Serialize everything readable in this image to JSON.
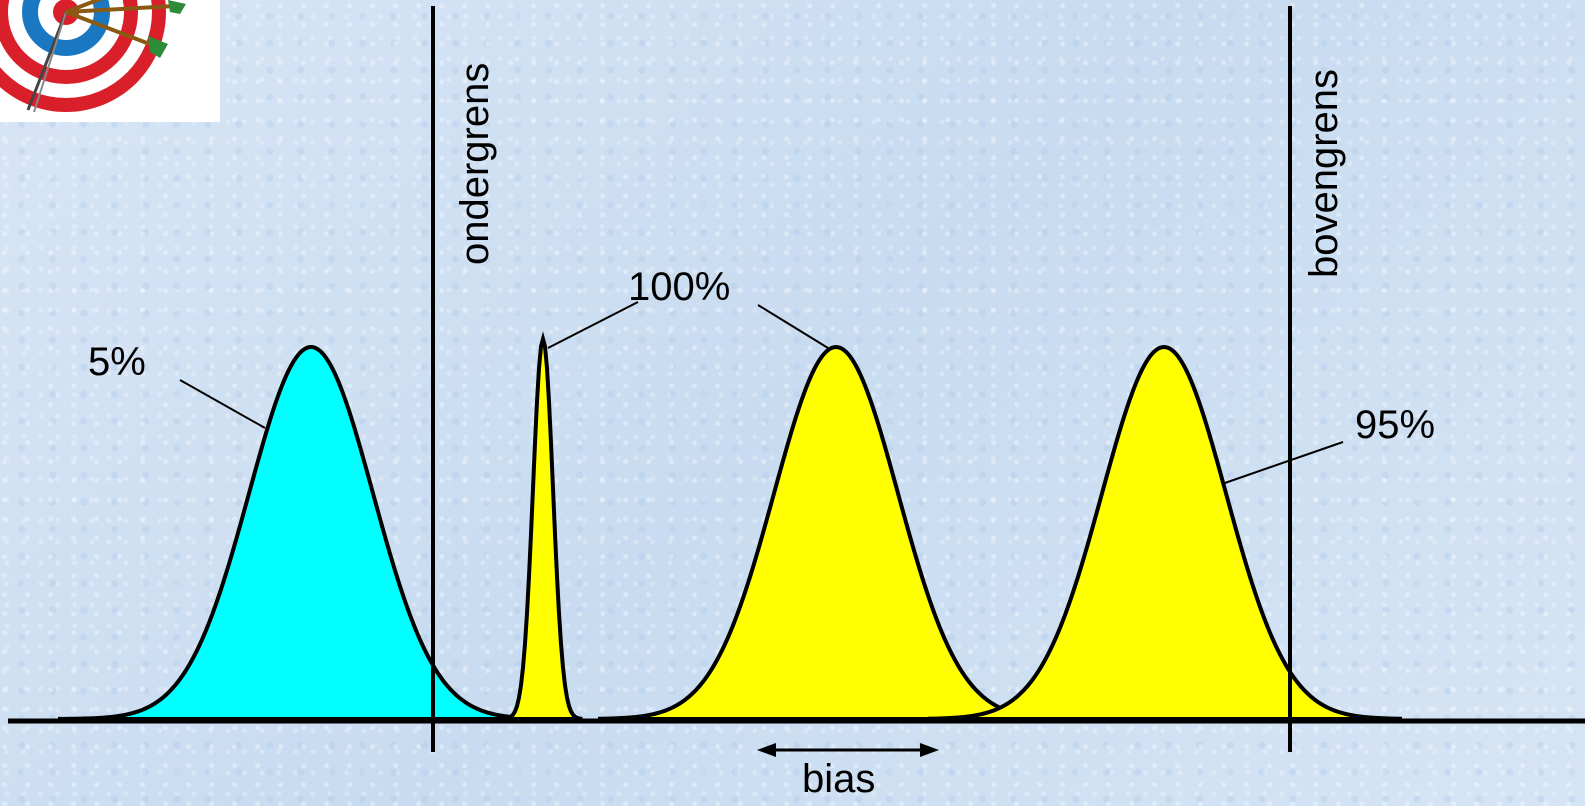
{
  "labels": {
    "lower_limit": "ondergrens",
    "upper_limit": "bovengrens",
    "pct_5": "5%",
    "pct_100": "100%",
    "pct_95": "95%",
    "bias": "bias"
  },
  "colors": {
    "background": "#cfe0f3",
    "left_curve_fill": "#00ffff",
    "inside_curve_fill": "#ffff00",
    "outline": "#000000"
  },
  "icons": {
    "logo": "target-with-darts-icon"
  }
}
